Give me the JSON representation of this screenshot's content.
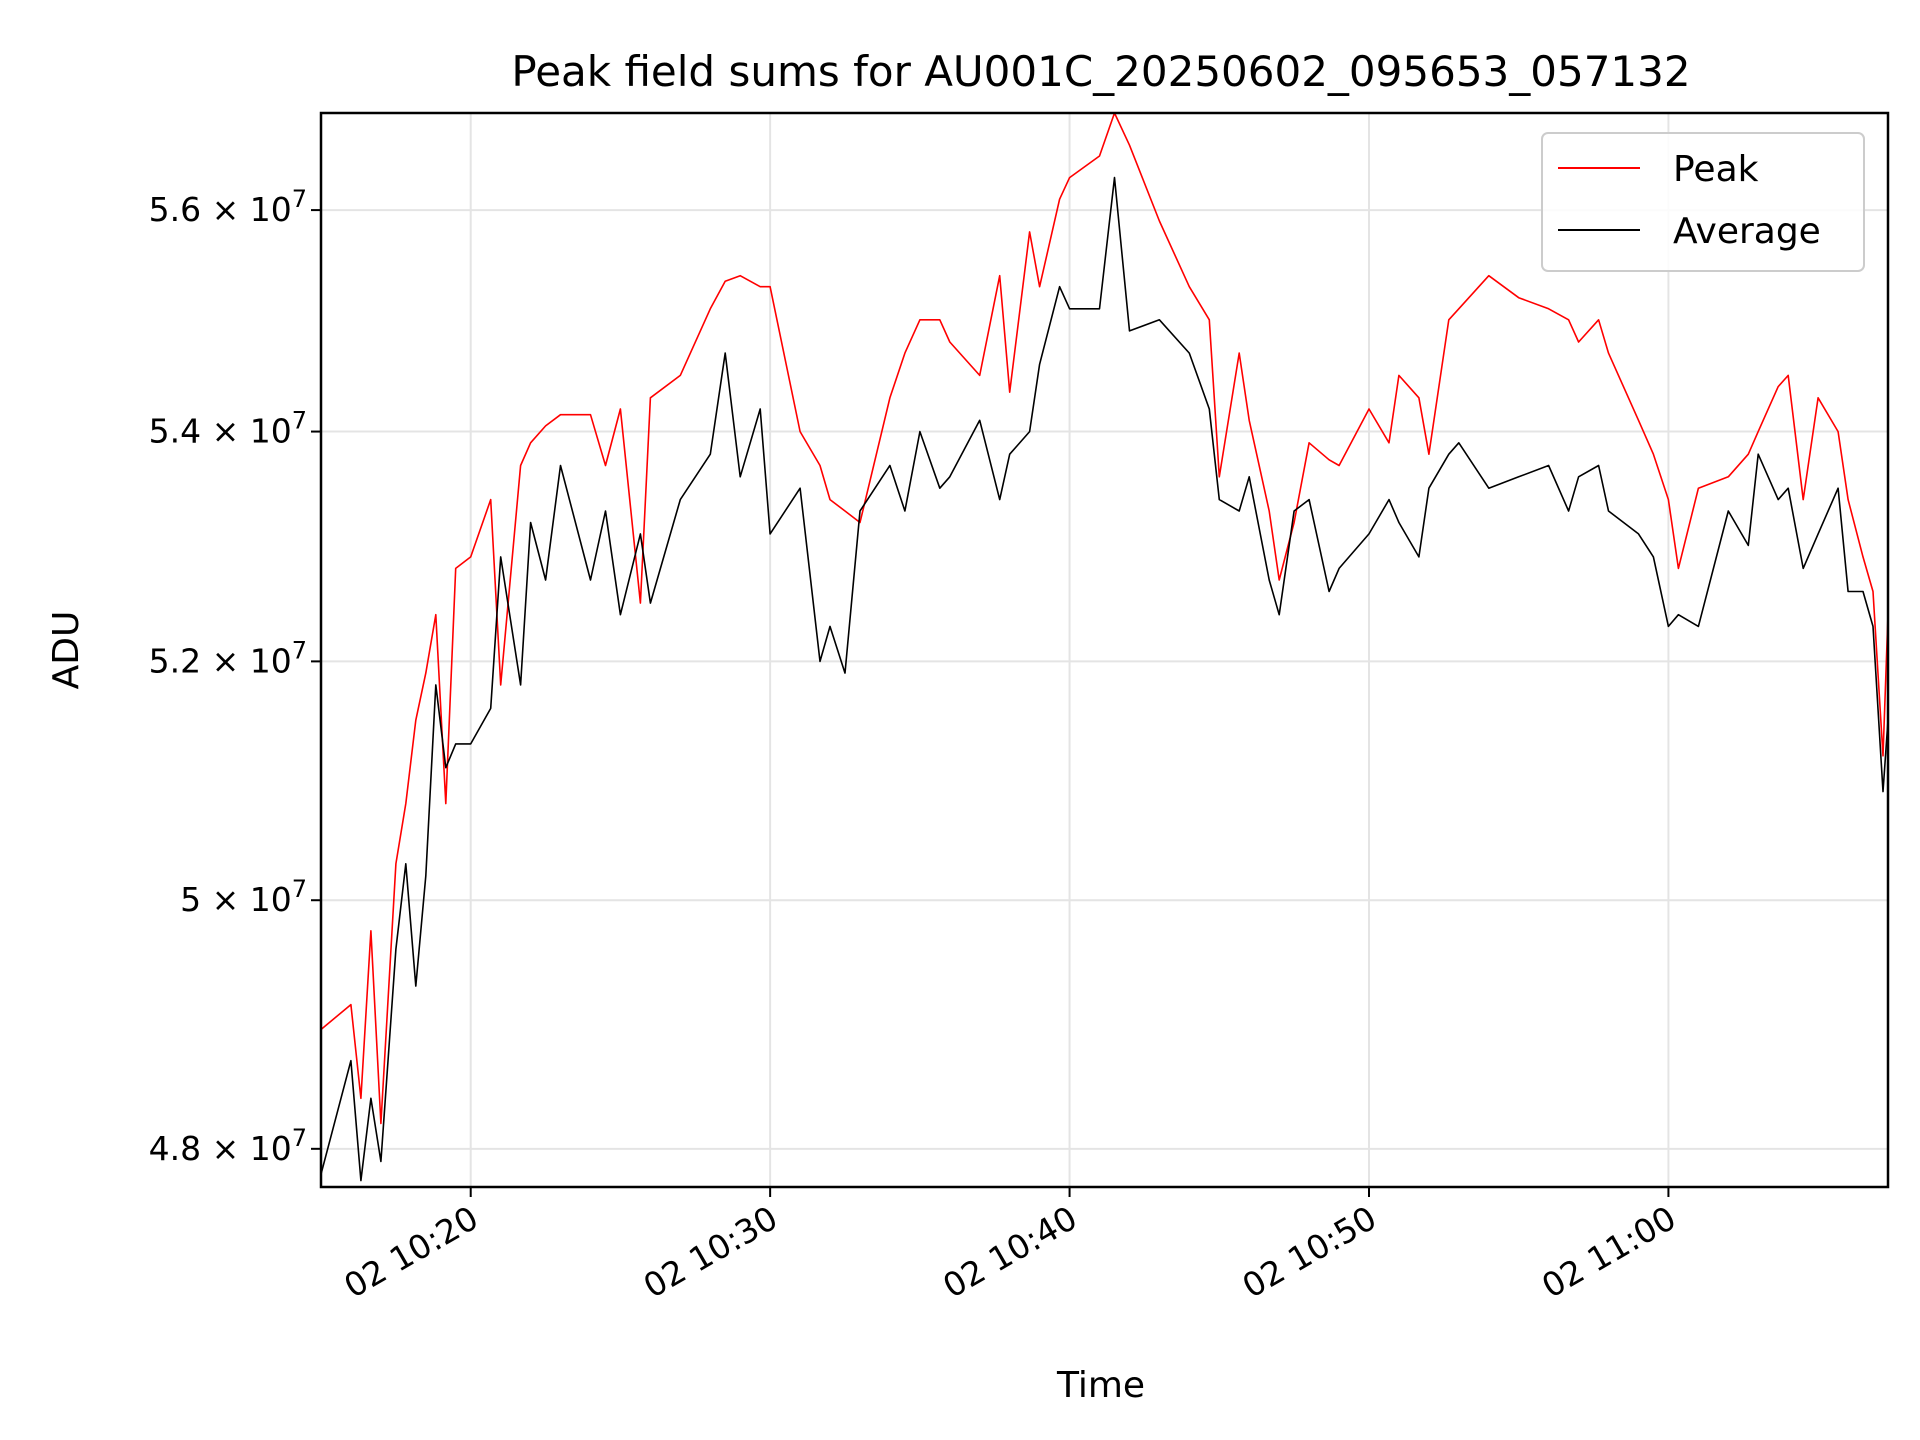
{
  "chart_data": {
    "type": "line",
    "title": "Peak field sums for AU001C_20250602_095653_057132",
    "xlabel": "Time",
    "ylabel": "ADU",
    "x_is_time": true,
    "x_start": "2025-06-02 10:15:00",
    "x_end": "2025-06-02 11:07:20",
    "ylim": [
      47700000,
      56900000
    ],
    "yscale": "log",
    "grid": true,
    "legend_position": "top-right",
    "x_ticks": [
      {
        "value": "2025-06-02 10:20:00",
        "label": "02 10:20"
      },
      {
        "value": "2025-06-02 10:30:00",
        "label": "02 10:30"
      },
      {
        "value": "2025-06-02 10:40:00",
        "label": "02 10:40"
      },
      {
        "value": "2025-06-02 10:50:00",
        "label": "02 10:50"
      },
      {
        "value": "2025-06-02 11:00:00",
        "label": "02 11:00"
      }
    ],
    "y_ticks": [
      {
        "value": 48000000,
        "mantissa": "4.8",
        "exp": "7"
      },
      {
        "value": 50000000,
        "mantissa": "5",
        "exp": "7"
      },
      {
        "value": 52000000,
        "mantissa": "5.2",
        "exp": "7"
      },
      {
        "value": 54000000,
        "mantissa": "5.4",
        "exp": "7"
      },
      {
        "value": 56000000,
        "mantissa": "5.6",
        "exp": "7"
      }
    ],
    "series": [
      {
        "name": "Peak",
        "color": "#ff0000",
        "x": [
          "2025-06-02 10:15:00",
          "2025-06-02 10:16:00",
          "2025-06-02 10:16:20",
          "2025-06-02 10:16:40",
          "2025-06-02 10:17:00",
          "2025-06-02 10:17:30",
          "2025-06-02 10:17:50",
          "2025-06-02 10:18:10",
          "2025-06-02 10:18:30",
          "2025-06-02 10:18:50",
          "2025-06-02 10:19:10",
          "2025-06-02 10:19:30",
          "2025-06-02 10:20:00",
          "2025-06-02 10:20:40",
          "2025-06-02 10:21:00",
          "2025-06-02 10:21:40",
          "2025-06-02 10:22:00",
          "2025-06-02 10:22:30",
          "2025-06-02 10:23:00",
          "2025-06-02 10:24:00",
          "2025-06-02 10:24:30",
          "2025-06-02 10:25:00",
          "2025-06-02 10:25:40",
          "2025-06-02 10:26:00",
          "2025-06-02 10:27:00",
          "2025-06-02 10:28:00",
          "2025-06-02 10:28:30",
          "2025-06-02 10:29:00",
          "2025-06-02 10:29:40",
          "2025-06-02 10:30:00",
          "2025-06-02 10:31:00",
          "2025-06-02 10:31:40",
          "2025-06-02 10:32:00",
          "2025-06-02 10:32:30",
          "2025-06-02 10:33:00",
          "2025-06-02 10:34:00",
          "2025-06-02 10:34:30",
          "2025-06-02 10:35:00",
          "2025-06-02 10:35:40",
          "2025-06-02 10:36:00",
          "2025-06-02 10:37:00",
          "2025-06-02 10:37:40",
          "2025-06-02 10:38:00",
          "2025-06-02 10:38:40",
          "2025-06-02 10:39:00",
          "2025-06-02 10:39:40",
          "2025-06-02 10:40:00",
          "2025-06-02 10:41:00",
          "2025-06-02 10:41:30",
          "2025-06-02 10:42:00",
          "2025-06-02 10:43:00",
          "2025-06-02 10:44:00",
          "2025-06-02 10:44:40",
          "2025-06-02 10:45:00",
          "2025-06-02 10:45:40",
          "2025-06-02 10:46:00",
          "2025-06-02 10:46:40",
          "2025-06-02 10:47:00",
          "2025-06-02 10:47:30",
          "2025-06-02 10:48:00",
          "2025-06-02 10:48:40",
          "2025-06-02 10:49:00",
          "2025-06-02 10:50:00",
          "2025-06-02 10:50:40",
          "2025-06-02 10:51:00",
          "2025-06-02 10:51:40",
          "2025-06-02 10:52:00",
          "2025-06-02 10:52:40",
          "2025-06-02 10:53:00",
          "2025-06-02 10:54:00",
          "2025-06-02 10:55:00",
          "2025-06-02 10:56:00",
          "2025-06-02 10:56:40",
          "2025-06-02 10:57:00",
          "2025-06-02 10:57:40",
          "2025-06-02 10:58:00",
          "2025-06-02 10:59:00",
          "2025-06-02 10:59:30",
          "2025-06-02 11:00:00",
          "2025-06-02 11:00:20",
          "2025-06-02 11:01:00",
          "2025-06-02 11:02:00",
          "2025-06-02 11:02:40",
          "2025-06-02 11:03:00",
          "2025-06-02 11:03:40",
          "2025-06-02 11:04:00",
          "2025-06-02 11:04:30",
          "2025-06-02 11:05:00",
          "2025-06-02 11:05:40",
          "2025-06-02 11:06:00",
          "2025-06-02 11:06:30",
          "2025-06-02 11:06:50",
          "2025-06-02 11:07:10",
          "2025-06-02 11:07:20"
        ],
        "values": [
          48950000,
          49150000,
          48400000,
          49750000,
          48200000,
          50300000,
          50800000,
          51500000,
          51900000,
          52400000,
          50800000,
          52800000,
          52900000,
          53400000,
          51800000,
          53700000,
          53900000,
          54050000,
          54150000,
          54150000,
          53700000,
          54200000,
          52500000,
          54300000,
          54500000,
          55100000,
          55350000,
          55400000,
          55300000,
          55300000,
          54000000,
          53700000,
          53400000,
          53300000,
          53200000,
          54300000,
          54700000,
          55000000,
          55000000,
          54800000,
          54500000,
          55400000,
          54350000,
          55800000,
          55300000,
          56100000,
          56300000,
          56500000,
          56900000,
          56600000,
          55900000,
          55300000,
          55000000,
          53600000,
          54700000,
          54100000,
          53300000,
          52700000,
          53200000,
          53900000,
          53750000,
          53700000,
          54200000,
          53900000,
          54500000,
          54300000,
          53800000,
          55000000,
          55100000,
          55400000,
          55200000,
          55100000,
          55000000,
          54800000,
          55000000,
          54700000,
          54100000,
          53800000,
          53400000,
          52800000,
          53500000,
          53600000,
          53800000,
          54000000,
          54400000,
          54500000,
          53400000,
          54300000,
          54000000,
          53400000,
          52900000,
          52600000,
          51200000,
          52400000
        ]
      },
      {
        "name": "Average",
        "color": "#000000",
        "x": [
          "2025-06-02 10:15:00",
          "2025-06-02 10:16:00",
          "2025-06-02 10:16:20",
          "2025-06-02 10:16:40",
          "2025-06-02 10:17:00",
          "2025-06-02 10:17:30",
          "2025-06-02 10:17:50",
          "2025-06-02 10:18:10",
          "2025-06-02 10:18:30",
          "2025-06-02 10:18:50",
          "2025-06-02 10:19:10",
          "2025-06-02 10:19:30",
          "2025-06-02 10:20:00",
          "2025-06-02 10:20:40",
          "2025-06-02 10:21:00",
          "2025-06-02 10:21:40",
          "2025-06-02 10:22:00",
          "2025-06-02 10:22:30",
          "2025-06-02 10:23:00",
          "2025-06-02 10:24:00",
          "2025-06-02 10:24:30",
          "2025-06-02 10:25:00",
          "2025-06-02 10:25:40",
          "2025-06-02 10:26:00",
          "2025-06-02 10:27:00",
          "2025-06-02 10:28:00",
          "2025-06-02 10:28:30",
          "2025-06-02 10:29:00",
          "2025-06-02 10:29:40",
          "2025-06-02 10:30:00",
          "2025-06-02 10:31:00",
          "2025-06-02 10:31:40",
          "2025-06-02 10:32:00",
          "2025-06-02 10:32:30",
          "2025-06-02 10:33:00",
          "2025-06-02 10:34:00",
          "2025-06-02 10:34:30",
          "2025-06-02 10:35:00",
          "2025-06-02 10:35:40",
          "2025-06-02 10:36:00",
          "2025-06-02 10:37:00",
          "2025-06-02 10:37:40",
          "2025-06-02 10:38:00",
          "2025-06-02 10:38:40",
          "2025-06-02 10:39:00",
          "2025-06-02 10:39:40",
          "2025-06-02 10:40:00",
          "2025-06-02 10:41:00",
          "2025-06-02 10:41:30",
          "2025-06-02 10:42:00",
          "2025-06-02 10:43:00",
          "2025-06-02 10:44:00",
          "2025-06-02 10:44:40",
          "2025-06-02 10:45:00",
          "2025-06-02 10:45:40",
          "2025-06-02 10:46:00",
          "2025-06-02 10:46:40",
          "2025-06-02 10:47:00",
          "2025-06-02 10:47:30",
          "2025-06-02 10:48:00",
          "2025-06-02 10:48:40",
          "2025-06-02 10:49:00",
          "2025-06-02 10:50:00",
          "2025-06-02 10:50:40",
          "2025-06-02 10:51:00",
          "2025-06-02 10:51:40",
          "2025-06-02 10:52:00",
          "2025-06-02 10:52:40",
          "2025-06-02 10:53:00",
          "2025-06-02 10:54:00",
          "2025-06-02 10:55:00",
          "2025-06-02 10:56:00",
          "2025-06-02 10:56:40",
          "2025-06-02 10:57:00",
          "2025-06-02 10:57:40",
          "2025-06-02 10:58:00",
          "2025-06-02 10:59:00",
          "2025-06-02 10:59:30",
          "2025-06-02 11:00:00",
          "2025-06-02 11:00:20",
          "2025-06-02 11:01:00",
          "2025-06-02 11:02:00",
          "2025-06-02 11:02:40",
          "2025-06-02 11:03:00",
          "2025-06-02 11:03:40",
          "2025-06-02 11:04:00",
          "2025-06-02 11:04:30",
          "2025-06-02 11:05:00",
          "2025-06-02 11:05:40",
          "2025-06-02 11:06:00",
          "2025-06-02 11:06:30",
          "2025-06-02 11:06:50",
          "2025-06-02 11:07:10",
          "2025-06-02 11:07:20"
        ],
        "values": [
          47800000,
          48700000,
          47750000,
          48400000,
          47900000,
          49600000,
          50300000,
          49300000,
          50200000,
          51800000,
          51100000,
          51300000,
          51300000,
          51600000,
          52900000,
          51800000,
          53200000,
          52700000,
          53700000,
          52700000,
          53300000,
          52400000,
          53100000,
          52500000,
          53400000,
          53800000,
          54700000,
          53600000,
          54200000,
          53100000,
          53500000,
          52000000,
          52300000,
          51900000,
          53300000,
          53700000,
          53300000,
          54000000,
          53500000,
          53600000,
          54100000,
          53400000,
          53800000,
          54000000,
          54600000,
          55300000,
          55100000,
          55100000,
          56300000,
          54900000,
          55000000,
          54700000,
          54200000,
          53400000,
          53300000,
          53600000,
          52700000,
          52400000,
          53300000,
          53400000,
          52600000,
          52800000,
          53100000,
          53400000,
          53200000,
          52900000,
          53500000,
          53800000,
          53900000,
          53500000,
          53600000,
          53700000,
          53300000,
          53600000,
          53700000,
          53300000,
          53100000,
          52900000,
          52300000,
          52400000,
          52300000,
          53300000,
          53000000,
          53800000,
          53400000,
          53500000,
          52800000,
          53100000,
          53500000,
          52600000,
          52600000,
          52300000,
          50900000,
          51500000
        ]
      }
    ]
  }
}
